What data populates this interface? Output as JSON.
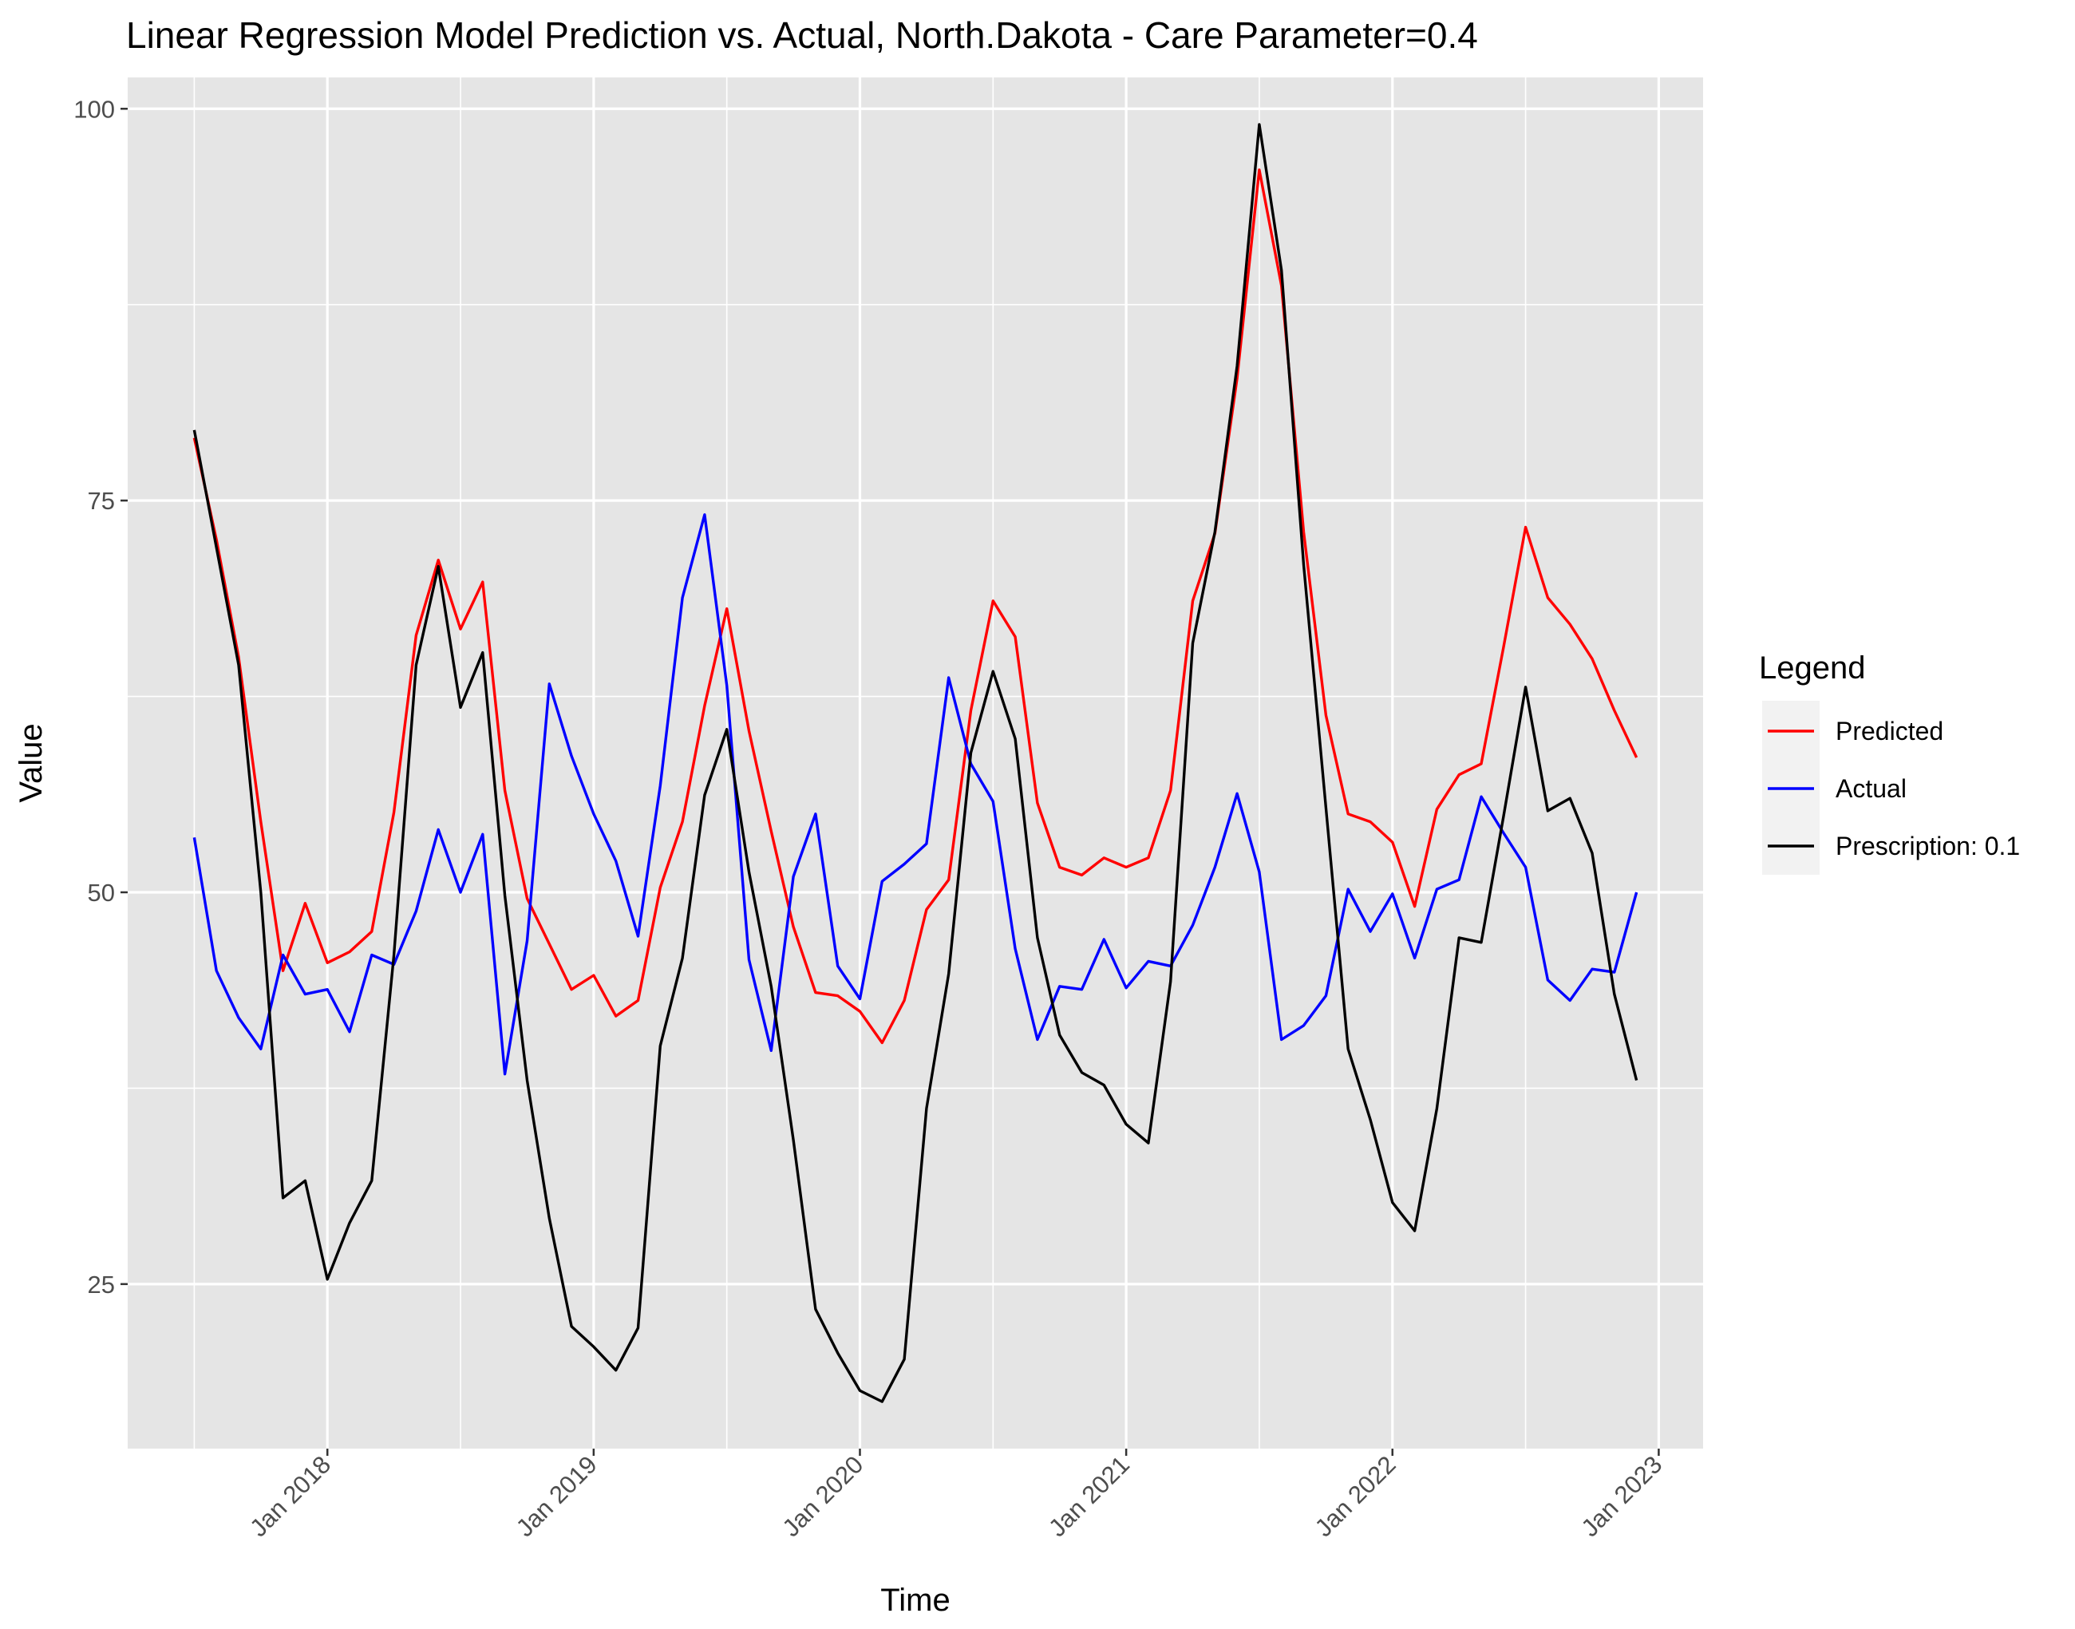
{
  "chart_data": {
    "type": "line",
    "title": "Linear Regression Model Prediction vs. Actual, North.Dakota - Care Parameter=0.4",
    "xlabel": "Time",
    "ylabel": "Value",
    "x_start": "2017-07",
    "x_ticks": [
      "2018-01",
      "2019-01",
      "2020-01",
      "2021-01",
      "2022-01",
      "2023-01"
    ],
    "x_tick_labels": [
      "Jan 2018",
      "Jan 2019",
      "Jan 2020",
      "Jan 2021",
      "Jan 2022",
      "Jan 2023"
    ],
    "xlim": [
      "2017-04",
      "2023-03"
    ],
    "ylim": [
      14.5,
      102
    ],
    "y_ticks": [
      25,
      50,
      75,
      100
    ],
    "y_tick_labels": [
      "25",
      "50",
      "75",
      "100"
    ],
    "grid": true,
    "legend": {
      "title": "Legend",
      "position": "right"
    },
    "series": [
      {
        "name": "Predicted",
        "color": "#ff0000",
        "values": [
          79,
          72.5,
          65,
          54.5,
          45,
          49.3,
          45.5,
          46.2,
          47.5,
          55.1,
          66.4,
          71.2,
          66.8,
          69.8,
          56.5,
          49.6,
          46.7,
          43.8,
          44.7,
          42.1,
          43.1,
          50.3,
          54.5,
          61.9,
          68.1,
          60.3,
          53.9,
          47.8,
          43.6,
          43.4,
          42.4,
          40.4,
          43.1,
          48.9,
          50.8,
          61.6,
          68.6,
          66.3,
          55.7,
          51.6,
          51.1,
          52.2,
          51.6,
          52.2,
          56.5,
          68.6,
          72.9,
          82.8,
          96.1,
          88.7,
          73,
          61.3,
          55,
          54.5,
          53.2,
          49.1,
          55.3,
          57.5,
          58.2,
          65.6,
          73.3,
          68.8,
          67.1,
          64.9,
          61.6,
          58.6
        ],
        "values_note": ""
      },
      {
        "name": "Actual",
        "color": "#0000ff",
        "values": [
          53.5,
          45,
          42,
          40,
          46,
          43.5,
          43.8,
          41.1,
          46,
          45.4,
          48.8,
          54,
          50,
          53.7,
          38.4,
          46.9,
          63.3,
          58.7,
          55,
          52,
          47.2,
          56.8,
          68.8,
          74.1,
          63.2,
          45.7,
          39.9,
          51,
          55,
          45.3,
          43.2,
          50.7,
          51.8,
          53.1,
          63.7,
          58.2,
          55.8,
          46.4,
          40.6,
          44,
          43.8,
          47,
          43.9,
          45.6,
          45.3,
          47.9,
          51.6,
          56.3,
          51.3,
          40.6,
          41.5,
          43.4,
          50.2,
          47.5,
          49.9,
          45.8,
          50.2,
          50.8,
          56.1,
          53.8,
          51.6,
          44.4,
          43.1,
          45.1,
          44.9,
          50
        ]
      },
      {
        "name": "Prescription: 0.1",
        "color": "#000000",
        "values": [
          79.5,
          72,
          64.5,
          50,
          30.5,
          31.6,
          25.3,
          28.9,
          31.6,
          46,
          64.5,
          70.8,
          61.8,
          65.3,
          49.8,
          38,
          29.2,
          22.3,
          21,
          19.5,
          22.2,
          40.2,
          45.8,
          56.2,
          60.4,
          51.3,
          44,
          34.2,
          23.4,
          20.6,
          18.2,
          17.5,
          20.2,
          36.2,
          44.8,
          58.9,
          64.1,
          59.8,
          47.1,
          40.9,
          38.5,
          37.7,
          35.2,
          34,
          44.3,
          65.9,
          73,
          83.6,
          99,
          89.7,
          70.9,
          55.4,
          40,
          35.5,
          30.2,
          28.4,
          36.2,
          47.1,
          46.8,
          54.8,
          63.1,
          55.2,
          56,
          52.5,
          43.5,
          38
        ]
      }
    ]
  }
}
